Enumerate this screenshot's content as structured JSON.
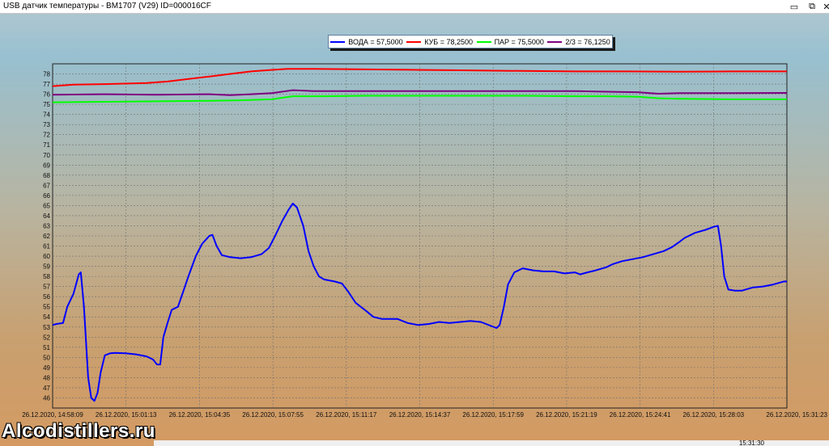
{
  "window": {
    "title": "USB датчик температуры - BM1707 (V29) ID=000016CF",
    "minimize_glyph": "▭",
    "restore_glyph": "⧉",
    "close_glyph": "✕"
  },
  "watermark": "Alcodistillers.ru",
  "status_time": "15:31:30",
  "chart_data": {
    "type": "line",
    "ylim": [
      45,
      79
    ],
    "yticks": [
      46,
      47,
      48,
      49,
      50,
      51,
      52,
      53,
      54,
      55,
      56,
      57,
      58,
      59,
      60,
      61,
      62,
      63,
      64,
      65,
      66,
      67,
      68,
      69,
      70,
      71,
      72,
      73,
      74,
      75,
      76,
      77,
      78
    ],
    "x_tick_labels": [
      "26.12.2020, 14:58:09",
      "26.12.2020, 15:01:13",
      "26.12.2020, 15:04:35",
      "26.12.2020, 15:07:55",
      "26.12.2020, 15:11:17",
      "26.12.2020, 15:14:37",
      "26.12.2020, 15:17:59",
      "26.12.2020, 15:21:19",
      "26.12.2020, 15:24:41",
      "26.12.2020, 15:28:03",
      "26.12.2020, 15:31:23"
    ],
    "grid": true,
    "legend_position": "top",
    "series": [
      {
        "name": "ВОДА = 57,5000",
        "color": "#0000ff",
        "points": [
          [
            0,
            53.2
          ],
          [
            0.35,
            53.3
          ],
          [
            1,
            53.4
          ],
          [
            1.4,
            55
          ],
          [
            2,
            56.3
          ],
          [
            2.5,
            58.2
          ],
          [
            2.7,
            58.4
          ],
          [
            3,
            55
          ],
          [
            3.4,
            48
          ],
          [
            3.7,
            46
          ],
          [
            4,
            45.7
          ],
          [
            4.3,
            46.5
          ],
          [
            4.6,
            48.5
          ],
          [
            5,
            50.2
          ],
          [
            5.5,
            50.4
          ],
          [
            6,
            50.45
          ],
          [
            7,
            50.4
          ],
          [
            8,
            50.3
          ],
          [
            9,
            50.1
          ],
          [
            9.6,
            49.8
          ],
          [
            10,
            49.3
          ],
          [
            10.3,
            49.3
          ],
          [
            10.6,
            52
          ],
          [
            11,
            53.4
          ],
          [
            11.4,
            54.7
          ],
          [
            12,
            55
          ],
          [
            12.5,
            56.5
          ],
          [
            13,
            58
          ],
          [
            13.7,
            60
          ],
          [
            14.3,
            61.2
          ],
          [
            15,
            62
          ],
          [
            15.3,
            62.1
          ],
          [
            15.7,
            61
          ],
          [
            16.2,
            60.1
          ],
          [
            17,
            59.9
          ],
          [
            18,
            59.8
          ],
          [
            19,
            59.9
          ],
          [
            20,
            60.2
          ],
          [
            20.7,
            60.8
          ],
          [
            21.3,
            62
          ],
          [
            22,
            63.5
          ],
          [
            22.6,
            64.6
          ],
          [
            23,
            65.2
          ],
          [
            23.4,
            64.8
          ],
          [
            24,
            63
          ],
          [
            24.5,
            60.5
          ],
          [
            25,
            59
          ],
          [
            25.5,
            58
          ],
          [
            26,
            57.7
          ],
          [
            27,
            57.5
          ],
          [
            27.7,
            57.3
          ],
          [
            28.3,
            56.5
          ],
          [
            29,
            55.4
          ],
          [
            30,
            54.6
          ],
          [
            30.7,
            54
          ],
          [
            31.5,
            53.8
          ],
          [
            33,
            53.8
          ],
          [
            34,
            53.4
          ],
          [
            35,
            53.2
          ],
          [
            36,
            53.3
          ],
          [
            37,
            53.5
          ],
          [
            38,
            53.4
          ],
          [
            39,
            53.5
          ],
          [
            40,
            53.6
          ],
          [
            41,
            53.5
          ],
          [
            41.5,
            53.3
          ],
          [
            42.5,
            52.9
          ],
          [
            42.8,
            53.2
          ],
          [
            43.2,
            55
          ],
          [
            43.6,
            57.2
          ],
          [
            44.2,
            58.4
          ],
          [
            45,
            58.8
          ],
          [
            46,
            58.6
          ],
          [
            47,
            58.5
          ],
          [
            48,
            58.5
          ],
          [
            49,
            58.3
          ],
          [
            50,
            58.4
          ],
          [
            50.5,
            58.2
          ],
          [
            51.2,
            58.4
          ],
          [
            52,
            58.6
          ],
          [
            53,
            58.9
          ],
          [
            53.6,
            59.2
          ],
          [
            54.5,
            59.5
          ],
          [
            55.5,
            59.7
          ],
          [
            56.5,
            59.9
          ],
          [
            57.5,
            60.2
          ],
          [
            58.5,
            60.5
          ],
          [
            59.3,
            60.9
          ],
          [
            60,
            61.4
          ],
          [
            60.5,
            61.8
          ],
          [
            61.5,
            62.3
          ],
          [
            62.5,
            62.6
          ],
          [
            63.3,
            62.9
          ],
          [
            63.7,
            63
          ],
          [
            64,
            61
          ],
          [
            64.3,
            58
          ],
          [
            64.7,
            56.7
          ],
          [
            65.3,
            56.6
          ],
          [
            66,
            56.6
          ],
          [
            67,
            56.9
          ],
          [
            68,
            57
          ],
          [
            69,
            57.2
          ],
          [
            70,
            57.5
          ],
          [
            70.3,
            57.5
          ]
        ]
      },
      {
        "name": "КУБ = 78,2500",
        "color": "#ff0000",
        "points": [
          [
            0,
            76.8
          ],
          [
            2,
            76.95
          ],
          [
            5,
            77
          ],
          [
            9,
            77.1
          ],
          [
            11,
            77.25
          ],
          [
            13,
            77.5
          ],
          [
            15,
            77.75
          ],
          [
            17,
            78
          ],
          [
            19,
            78.25
          ],
          [
            21,
            78.4
          ],
          [
            22.5,
            78.5
          ],
          [
            25,
            78.5
          ],
          [
            30,
            78.45
          ],
          [
            35,
            78.4
          ],
          [
            40,
            78.35
          ],
          [
            45,
            78.3
          ],
          [
            50,
            78.25
          ],
          [
            55,
            78.25
          ],
          [
            60,
            78.22
          ],
          [
            65,
            78.25
          ],
          [
            70.3,
            78.25
          ]
        ]
      },
      {
        "name": "ПАР = 75,5000",
        "color": "#00ff00",
        "points": [
          [
            0,
            75.2
          ],
          [
            5,
            75.25
          ],
          [
            10,
            75.3
          ],
          [
            15,
            75.35
          ],
          [
            18,
            75.4
          ],
          [
            21,
            75.5
          ],
          [
            23,
            75.8
          ],
          [
            26,
            75.8
          ],
          [
            30,
            75.85
          ],
          [
            35,
            75.85
          ],
          [
            40,
            75.85
          ],
          [
            45,
            75.85
          ],
          [
            50,
            75.8
          ],
          [
            53,
            75.8
          ],
          [
            56,
            75.75
          ],
          [
            58,
            75.6
          ],
          [
            60,
            75.55
          ],
          [
            65,
            75.5
          ],
          [
            70.3,
            75.5
          ]
        ]
      },
      {
        "name": "2/3 = 76,1250",
        "color": "#800080",
        "points": [
          [
            0,
            75.95
          ],
          [
            5,
            76
          ],
          [
            10,
            75.95
          ],
          [
            15,
            76
          ],
          [
            17,
            75.9
          ],
          [
            19,
            76
          ],
          [
            21,
            76.1
          ],
          [
            23,
            76.4
          ],
          [
            25,
            76.3
          ],
          [
            30,
            76.3
          ],
          [
            35,
            76.3
          ],
          [
            40,
            76.3
          ],
          [
            45,
            76.3
          ],
          [
            50,
            76.3
          ],
          [
            53,
            76.25
          ],
          [
            56,
            76.2
          ],
          [
            58,
            76.05
          ],
          [
            60,
            76.1
          ],
          [
            65,
            76.1
          ],
          [
            70.3,
            76.125
          ]
        ]
      }
    ]
  }
}
